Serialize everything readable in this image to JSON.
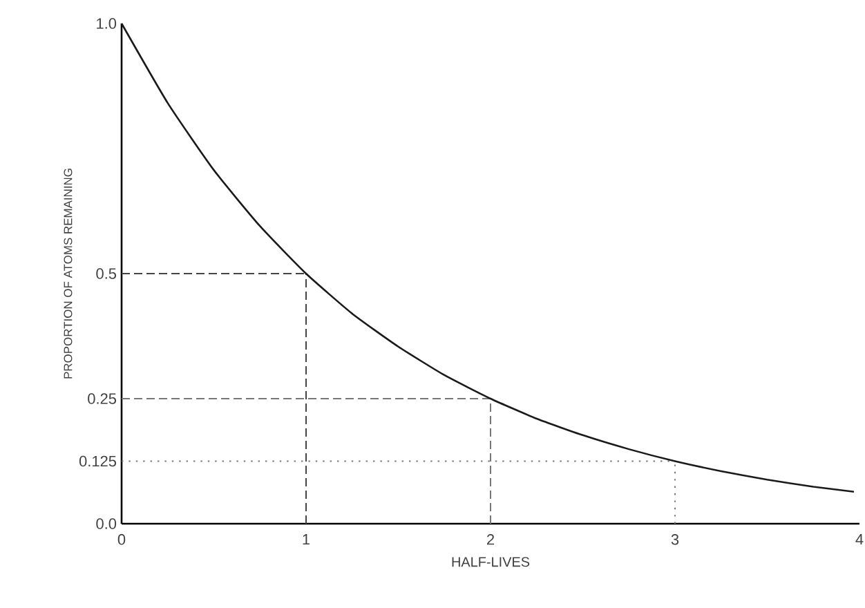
{
  "chart_data": {
    "type": "line",
    "xlabel": "HALF-LIVES",
    "ylabel": "PROPORTION OF ATOMS REMAINING",
    "x": [
      0,
      0.25,
      0.5,
      0.75,
      1,
      1.25,
      1.5,
      1.75,
      2,
      2.25,
      2.5,
      2.75,
      3,
      3.25,
      3.5,
      3.75,
      3.97
    ],
    "series": [
      {
        "color": "#1a1a1a",
        "values": [
          1.0,
          0.841,
          0.707,
          0.595,
          0.5,
          0.42,
          0.354,
          0.297,
          0.25,
          0.21,
          0.177,
          0.149,
          0.125,
          0.105,
          0.088,
          0.074,
          0.064
        ]
      }
    ],
    "xlim": [
      0,
      4
    ],
    "xticks": [
      0,
      1,
      2,
      3,
      4
    ],
    "ylim": [
      0,
      1
    ],
    "yticks": [
      {
        "value": 0,
        "label": "0.0"
      },
      {
        "value": 0.125,
        "label": "0.125"
      },
      {
        "value": 0.25,
        "label": "0.25"
      },
      {
        "value": 0.5,
        "label": "0.5"
      },
      {
        "value": 1,
        "label": "1.0"
      }
    ],
    "ref_lines": [
      {
        "axis": "y",
        "value": 0.5,
        "line_style": "dashed",
        "color": "#444444"
      },
      {
        "axis": "x",
        "value": 1,
        "line_style": "dashed",
        "color": "#444444"
      },
      {
        "axis": "y",
        "value": 0.25,
        "line_style": "dashed",
        "color": "#777777"
      },
      {
        "axis": "x",
        "value": 2,
        "line_style": "dashed",
        "color": "#777777"
      },
      {
        "axis": "y",
        "value": 0.125,
        "line_style": "dotted",
        "color": "#777777"
      },
      {
        "axis": "x",
        "value": 3,
        "line_style": "dotted",
        "color": "#777777"
      }
    ],
    "marker": "none",
    "line_style": "solid"
  }
}
